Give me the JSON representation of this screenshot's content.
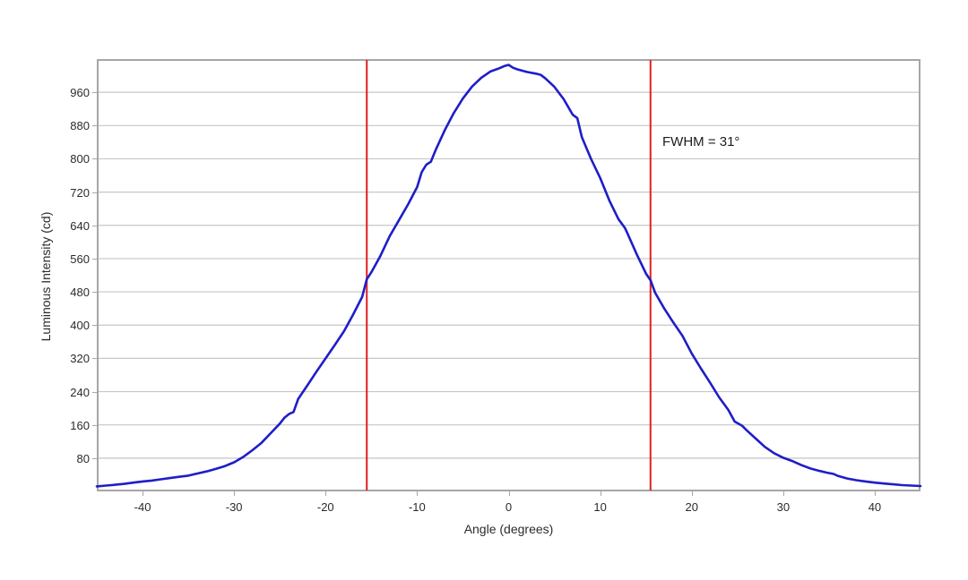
{
  "page": {
    "background": "#ffffff"
  },
  "annotation": {
    "text": "FWHM = 31°"
  },
  "chart_data": {
    "type": "line",
    "title": "",
    "xlabel": "Angle (degrees)",
    "ylabel": "Luminous Intensity (cd)",
    "xlim": [
      -45,
      45
    ],
    "ylim": [
      0,
      1040
    ],
    "x_ticks": [
      -40,
      -30,
      -20,
      -10,
      0,
      10,
      20,
      30,
      40
    ],
    "y_ticks": [
      80,
      160,
      240,
      320,
      400,
      480,
      560,
      640,
      720,
      800,
      880,
      960
    ],
    "grid": "horizontal-only",
    "legend": "none",
    "colors": {
      "curve": "#1e1ec8",
      "fwhm_line": "#e02020",
      "gridline": "#c6c6c6",
      "plot_border": "#a6a6a6",
      "text": "#2b2b2b"
    },
    "markers": {
      "type": "vline",
      "x": [
        -15.5,
        15.5
      ],
      "label": "FWHM = 31°"
    },
    "series": [
      {
        "name": "luminous-intensity-vs-angle",
        "points": [
          [
            -45,
            12
          ],
          [
            -44,
            14
          ],
          [
            -43,
            16
          ],
          [
            -42,
            18
          ],
          [
            -41,
            21
          ],
          [
            -40,
            24
          ],
          [
            -39,
            26
          ],
          [
            -38,
            29
          ],
          [
            -37,
            32
          ],
          [
            -36,
            35
          ],
          [
            -35,
            38
          ],
          [
            -34,
            43
          ],
          [
            -33,
            48
          ],
          [
            -32,
            54
          ],
          [
            -31,
            61
          ],
          [
            -30,
            70
          ],
          [
            -29,
            83
          ],
          [
            -28,
            99
          ],
          [
            -27,
            117
          ],
          [
            -26,
            140
          ],
          [
            -25,
            163
          ],
          [
            -24.5,
            177
          ],
          [
            -24,
            186
          ],
          [
            -23.5,
            191
          ],
          [
            -23,
            222
          ],
          [
            -22,
            255
          ],
          [
            -21,
            288
          ],
          [
            -20,
            320
          ],
          [
            -19,
            352
          ],
          [
            -18,
            385
          ],
          [
            -17,
            425
          ],
          [
            -16,
            468
          ],
          [
            -15.5,
            510
          ],
          [
            -15,
            527
          ],
          [
            -14,
            567
          ],
          [
            -13,
            614
          ],
          [
            -12,
            652
          ],
          [
            -11,
            690
          ],
          [
            -10,
            732
          ],
          [
            -9.5,
            768
          ],
          [
            -9,
            786
          ],
          [
            -8.5,
            793
          ],
          [
            -8,
            820
          ],
          [
            -7,
            868
          ],
          [
            -6,
            910
          ],
          [
            -5,
            945
          ],
          [
            -4,
            974
          ],
          [
            -3,
            995
          ],
          [
            -2,
            1010
          ],
          [
            -1,
            1018
          ],
          [
            -0.5,
            1023
          ],
          [
            0,
            1026
          ],
          [
            0.5,
            1019
          ],
          [
            1,
            1015
          ],
          [
            2,
            1009
          ],
          [
            3,
            1005
          ],
          [
            3.5,
            1002
          ],
          [
            4,
            994
          ],
          [
            5,
            973
          ],
          [
            6,
            944
          ],
          [
            7,
            906
          ],
          [
            7.5,
            898
          ],
          [
            8,
            852
          ],
          [
            9,
            800
          ],
          [
            10,
            754
          ],
          [
            11,
            700
          ],
          [
            12,
            655
          ],
          [
            12.7,
            634
          ],
          [
            13,
            620
          ],
          [
            14,
            570
          ],
          [
            15,
            524
          ],
          [
            15.5,
            508
          ],
          [
            16,
            478
          ],
          [
            17,
            440
          ],
          [
            18,
            406
          ],
          [
            19,
            374
          ],
          [
            20,
            332
          ],
          [
            21,
            296
          ],
          [
            22,
            262
          ],
          [
            23,
            226
          ],
          [
            24,
            196
          ],
          [
            24.7,
            168
          ],
          [
            25.5,
            158
          ],
          [
            26,
            147
          ],
          [
            27,
            127
          ],
          [
            28,
            107
          ],
          [
            29,
            92
          ],
          [
            30,
            81
          ],
          [
            31,
            73
          ],
          [
            32,
            63
          ],
          [
            33,
            55
          ],
          [
            34,
            49
          ],
          [
            34.8,
            45
          ],
          [
            35.5,
            42
          ],
          [
            36,
            37
          ],
          [
            37,
            31
          ],
          [
            38,
            27
          ],
          [
            39,
            24
          ],
          [
            40,
            21
          ],
          [
            41,
            19
          ],
          [
            42,
            17
          ],
          [
            43,
            15
          ],
          [
            44,
            14
          ],
          [
            45,
            13
          ]
        ]
      }
    ]
  }
}
